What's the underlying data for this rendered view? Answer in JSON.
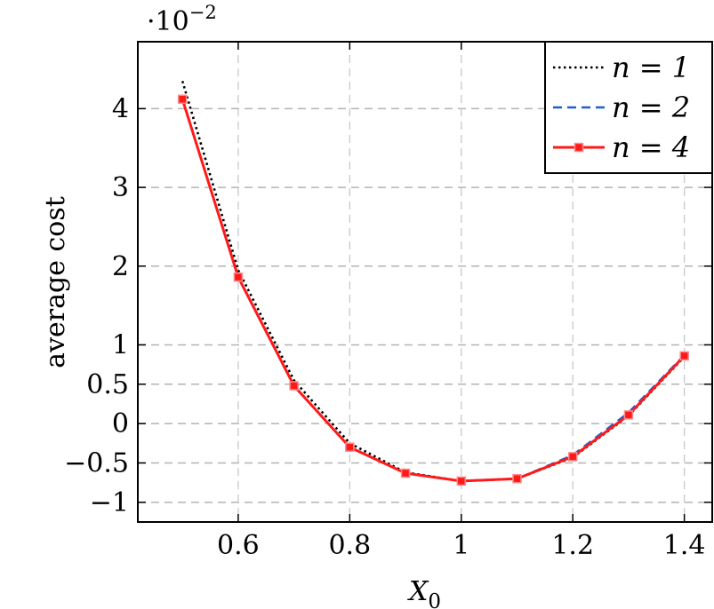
{
  "chart_data": {
    "type": "line",
    "xlabel": "X",
    "xlabel_sub": "0",
    "ylabel": "average cost",
    "scale_note": "·10",
    "scale_exp": "−2",
    "xlim": [
      0.42,
      1.45
    ],
    "ylim": [
      -1.25,
      4.85
    ],
    "grid": "horizontal-dashed",
    "legend_position": "top-right",
    "x_ticks": [
      {
        "v": 0.6,
        "label": "0.6"
      },
      {
        "v": 0.8,
        "label": "0.8"
      },
      {
        "v": 1.0,
        "label": "1"
      },
      {
        "v": 1.2,
        "label": "1.2"
      },
      {
        "v": 1.4,
        "label": "1.4"
      }
    ],
    "y_ticks": [
      {
        "v": -1,
        "label": "−1"
      },
      {
        "v": -0.5,
        "label": "−0.5"
      },
      {
        "v": 0,
        "label": "0"
      },
      {
        "v": 0.5,
        "label": "0.5"
      },
      {
        "v": 1,
        "label": "1"
      },
      {
        "v": 2,
        "label": "2"
      },
      {
        "v": 3,
        "label": "3"
      },
      {
        "v": 4,
        "label": "4"
      }
    ],
    "x": [
      0.5,
      0.6,
      0.7,
      0.8,
      0.9,
      1.0,
      1.1,
      1.2,
      1.3,
      1.4
    ],
    "series": [
      {
        "name": "n = 1",
        "color": "#000000",
        "style": "dotted",
        "values": [
          4.35,
          1.95,
          0.55,
          -0.25,
          -0.62,
          -0.73,
          -0.7,
          -0.43,
          0.1,
          0.85
        ]
      },
      {
        "name": "n = 2",
        "color": "#1f5fd6",
        "style": "dashed",
        "values": [
          4.12,
          1.87,
          0.48,
          -0.3,
          -0.63,
          -0.73,
          -0.7,
          -0.4,
          0.14,
          0.87
        ]
      },
      {
        "name": "n = 4",
        "color": "#ff1a1a",
        "style": "solid-square",
        "values": [
          4.12,
          1.86,
          0.48,
          -0.3,
          -0.63,
          -0.73,
          -0.7,
          -0.42,
          0.11,
          0.86
        ]
      }
    ]
  }
}
